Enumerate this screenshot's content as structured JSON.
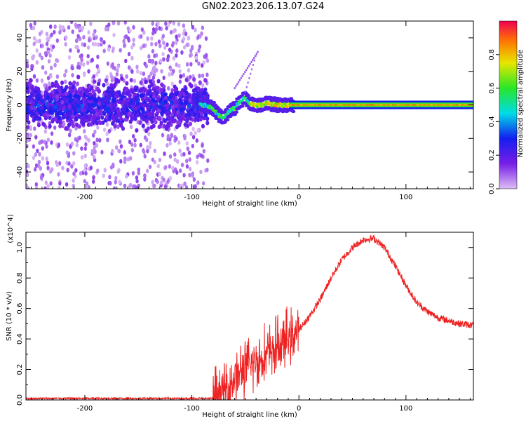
{
  "title": "GN02.2023.206.13.07.G24",
  "chart_data": [
    {
      "type": "heatmap",
      "xlabel": "Height of straight line (km)",
      "ylabel": "Frequency (Hz)",
      "xlim": [
        -255,
        163
      ],
      "ylim": [
        -50,
        50
      ],
      "xticks": [
        -200,
        -100,
        0,
        100
      ],
      "xtick_labels": [
        "-200",
        "-100",
        "0",
        "100"
      ],
      "yticks": [
        -40,
        -20,
        0,
        20,
        40
      ],
      "ytick_labels": [
        "-40",
        "-20",
        "0",
        "20",
        "40"
      ],
      "colorbar": {
        "label": "Normalized spectral amplitude",
        "range": [
          0.0,
          1.0
        ],
        "ticks": [
          0.0,
          0.2,
          0.4,
          0.6,
          0.8
        ],
        "tick_labels": [
          "0.0",
          "0.2",
          "0.4",
          "0.6",
          "0.8"
        ]
      },
      "tone_track": [
        {
          "x": -90,
          "f": 0
        },
        {
          "x": -80,
          "f": -2
        },
        {
          "x": -75,
          "f": -6
        },
        {
          "x": -70,
          "f": -8
        },
        {
          "x": -65,
          "f": -4
        },
        {
          "x": -60,
          "f": -2
        },
        {
          "x": -55,
          "f": 2
        },
        {
          "x": -50,
          "f": 4
        },
        {
          "x": -45,
          "f": 1
        },
        {
          "x": -40,
          "f": -1
        },
        {
          "x": -30,
          "f": 1
        },
        {
          "x": -20,
          "f": 0
        },
        {
          "x": 0,
          "f": 0
        },
        {
          "x": 163,
          "f": 0
        }
      ]
    },
    {
      "type": "line",
      "xlabel": "Height of straight line (km)",
      "ylabel": "SNR (10 * v/v)",
      "y_multiplier": "(x10^4)",
      "xlim": [
        -255,
        163
      ],
      "ylim": [
        0.0,
        1.1
      ],
      "xticks": [
        -200,
        -100,
        0,
        100
      ],
      "xtick_labels": [
        "-200",
        "-100",
        "0",
        "100"
      ],
      "yticks": [
        0.0,
        0.2,
        0.4,
        0.6,
        0.8,
        1.0
      ],
      "ytick_labels": [
        "0.0",
        "0.2",
        "0.4",
        "0.6",
        "0.8",
        "1.0"
      ],
      "color": "#ee2222",
      "series": [
        {
          "x": [
            -255,
            -200,
            -150,
            -100,
            -80,
            -70,
            -60,
            -50,
            -40,
            -30,
            -20,
            -10,
            0,
            10,
            20,
            30,
            40,
            50,
            60,
            70,
            80,
            90,
            100,
            110,
            120,
            130,
            140,
            150,
            163
          ],
          "y": [
            0.01,
            0.01,
            0.01,
            0.01,
            0.01,
            0.05,
            0.15,
            0.2,
            0.25,
            0.3,
            0.35,
            0.4,
            0.46,
            0.55,
            0.66,
            0.8,
            0.92,
            1.0,
            1.05,
            1.06,
            1.0,
            0.88,
            0.75,
            0.64,
            0.58,
            0.54,
            0.52,
            0.5,
            0.49
          ]
        }
      ]
    }
  ]
}
